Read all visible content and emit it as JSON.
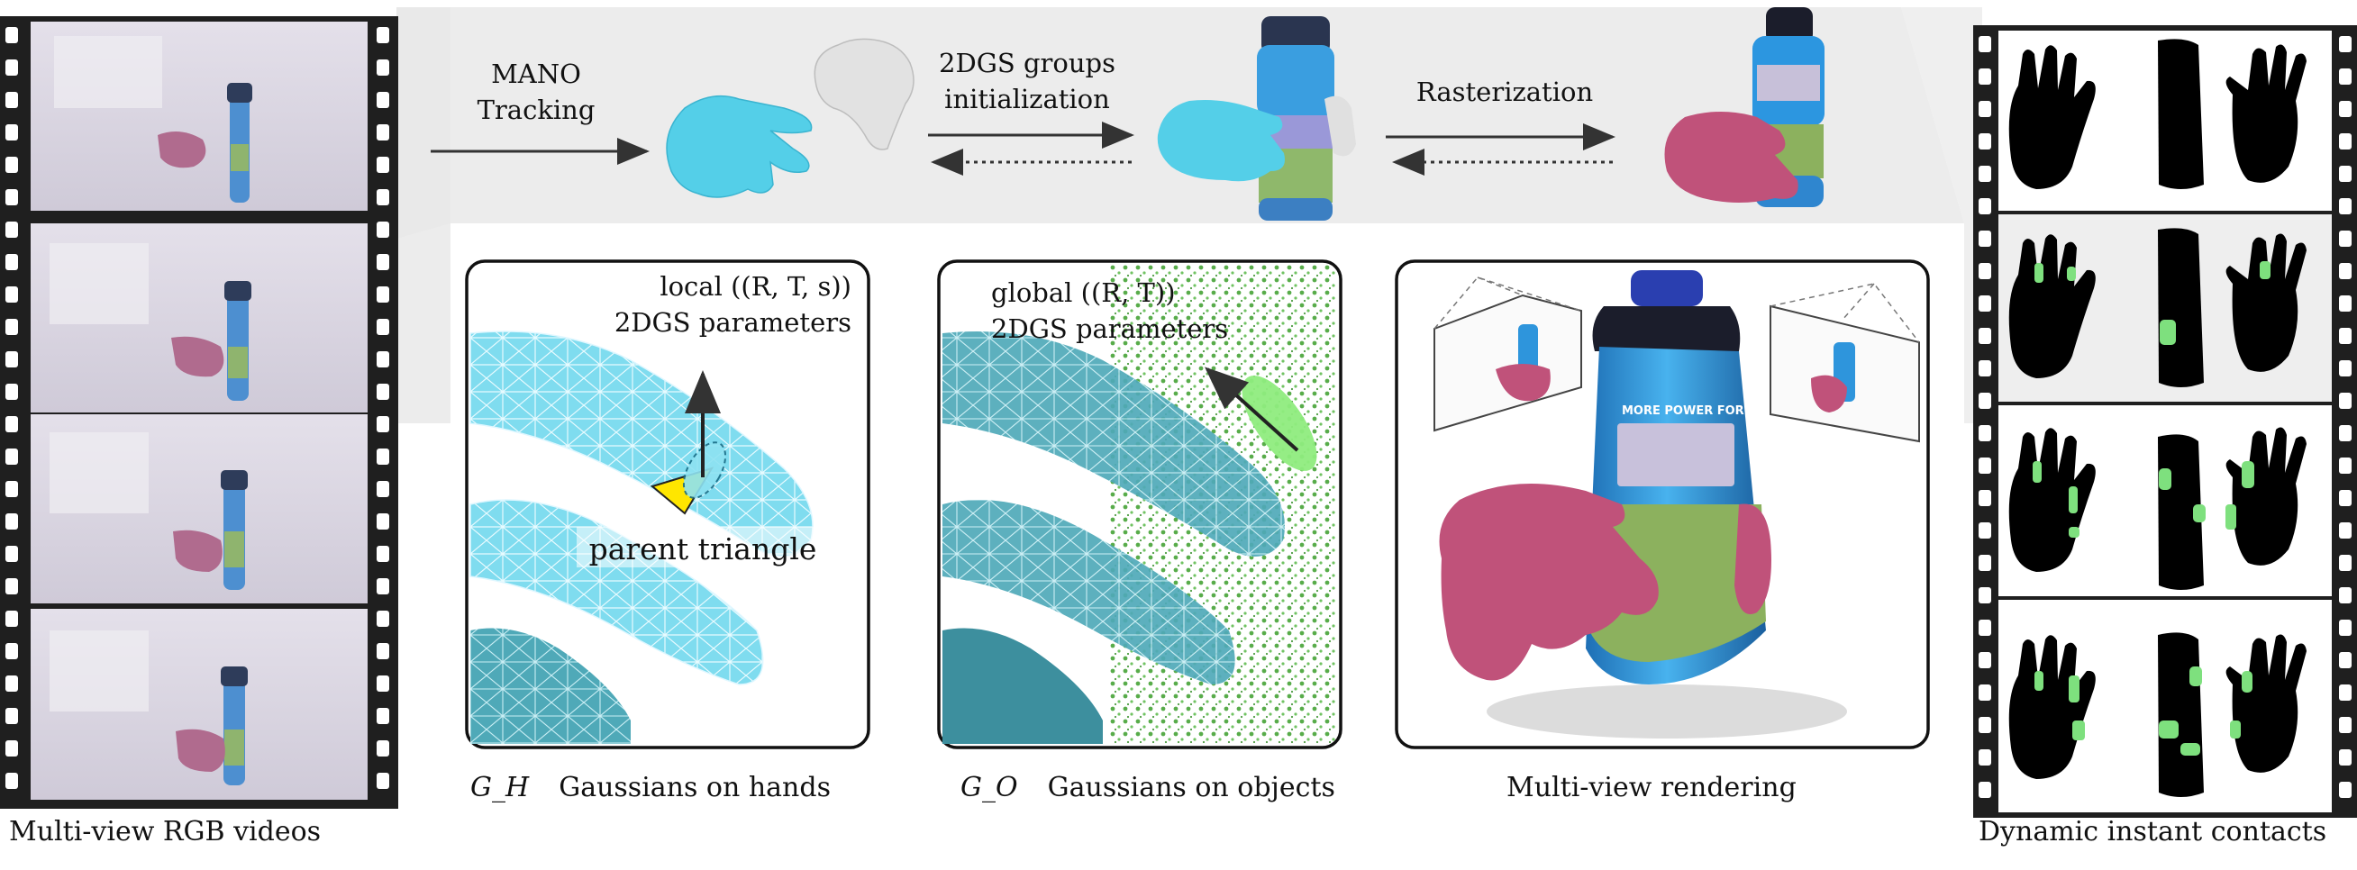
{
  "figure": {
    "steps": {
      "mano_tracking": [
        "MANO",
        "Tracking"
      ],
      "groups_init": [
        "2DGS groups",
        "initialization"
      ],
      "rasterization": "Rasterization"
    },
    "panels": {
      "hands": {
        "param_line1": "local ((R, T, s))",
        "param_line2": "2DGS parameters",
        "parent_label": "parent triangle",
        "symbol": "G_H",
        "caption": "Gaussians on hands"
      },
      "objects": {
        "param_line1": "global ((R, T))",
        "param_line2": "2DGS parameters",
        "symbol": "G_O",
        "caption": "Gaussians on objects"
      },
      "rendering": {
        "caption": "Multi-view rendering",
        "bottle_text": "MORE POWER FOR"
      }
    },
    "left_strip": {
      "caption": "Multi-view RGB videos",
      "frame_count": 4
    },
    "right_strip": {
      "caption": "Dynamic instant contacts",
      "frame_count": 4
    },
    "colors": {
      "hand_cyan": "#5fd4ea",
      "hand_pink": "#c0527a",
      "contact_green": "#7ee07e",
      "bottle_blue": "#3aa0e0",
      "band_gray": "#e8e8e8",
      "film_black": "#1f1f1f"
    }
  }
}
